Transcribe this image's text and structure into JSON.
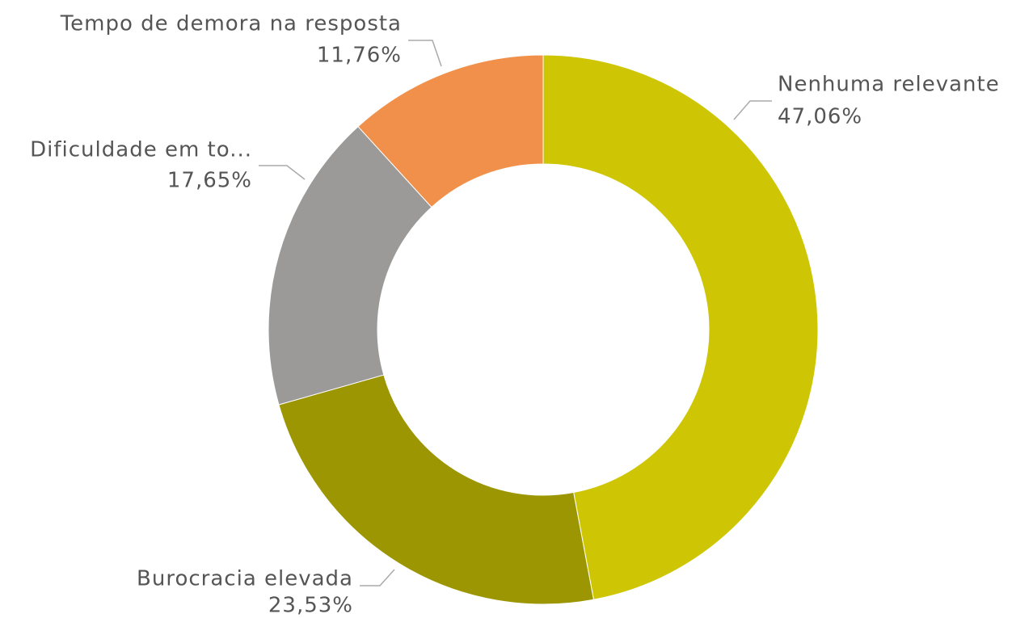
{
  "chart_data": {
    "type": "donut",
    "categories": [
      "Nenhuma relevante",
      "Burocracia elevada",
      "Dificuldade em to...",
      "Tempo de demora na resposta"
    ],
    "values": [
      47.06,
      23.53,
      17.65,
      11.76
    ],
    "value_labels": [
      "47,06%",
      "23,53%",
      "17,65%",
      "11,76%"
    ],
    "colors": [
      "#cec605",
      "#9c9602",
      "#9b9a98",
      "#f0904a"
    ]
  }
}
